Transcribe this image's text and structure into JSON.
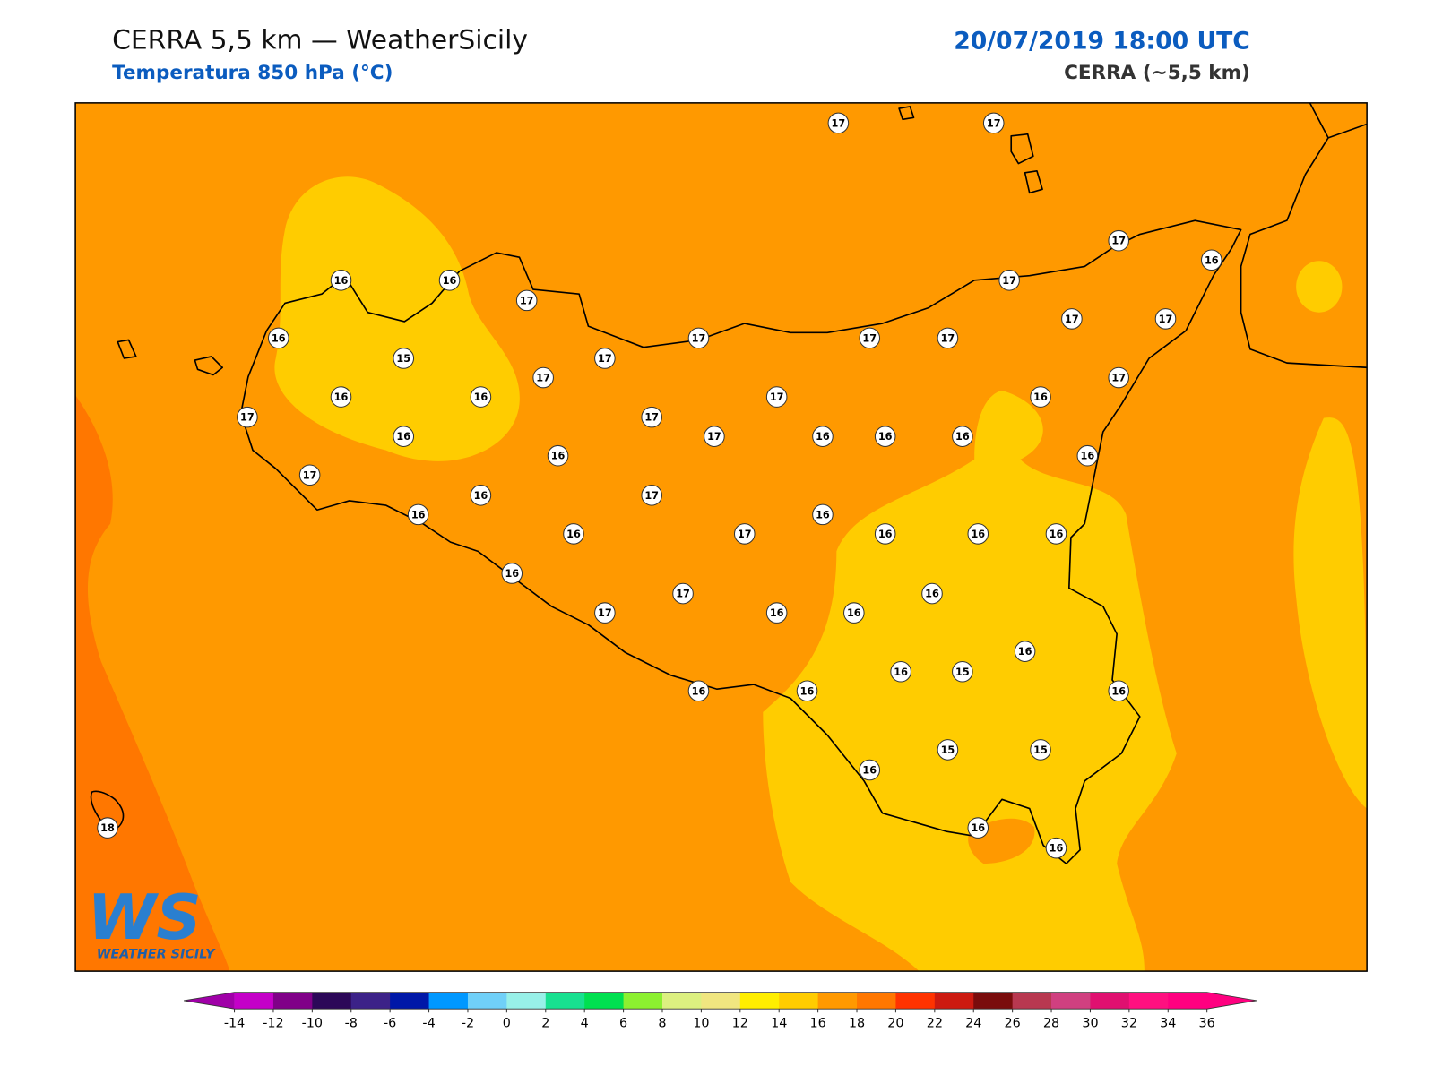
{
  "header": {
    "title": "CERRA 5,5 km — WeatherSicily",
    "subtitle": "Temperatura 850 hPa (°C)",
    "date": "20/07/2019 18:00 UTC",
    "model": "CERRA (~5,5 km)"
  },
  "stations": [
    17,
    17,
    17,
    16,
    16,
    16,
    17,
    17,
    17,
    17,
    16,
    17,
    17,
    17,
    15,
    17,
    17,
    17,
    16,
    16,
    17,
    16,
    17,
    17,
    16,
    17,
    16,
    16,
    16,
    16,
    16,
    17,
    16,
    17,
    16,
    16,
    16,
    17,
    16,
    16,
    16,
    16,
    16,
    17,
    17,
    16,
    16,
    16,
    16,
    15,
    16,
    16,
    16,
    15,
    15,
    16,
    18,
    16,
    16
  ],
  "colorbar": {
    "ticks": [
      -14,
      -12,
      -10,
      -8,
      -6,
      -4,
      -2,
      0,
      2,
      4,
      6,
      8,
      10,
      12,
      14,
      16,
      18,
      20,
      22,
      24,
      26,
      28,
      30,
      32,
      34,
      36
    ],
    "under_color": "#a000a8",
    "over_color": "#ff0080",
    "colors": [
      "#c400c8",
      "#800088",
      "#2c0858",
      "#3c2288",
      "#0018a8",
      "#0098ff",
      "#70d0f8",
      "#98f0e8",
      "#18e090",
      "#00e050",
      "#8cf030",
      "#dcf080",
      "#f0e680",
      "#ffee00",
      "#ffcc00",
      "#ff9900",
      "#ff7700",
      "#ff3300",
      "#cc1a10",
      "#7a0c0c",
      "#b83850",
      "#d04080",
      "#e01070",
      "#ff1080",
      "#ff0080"
    ]
  },
  "logo": {
    "mark": "WS",
    "text": "WEATHER SICILY"
  }
}
